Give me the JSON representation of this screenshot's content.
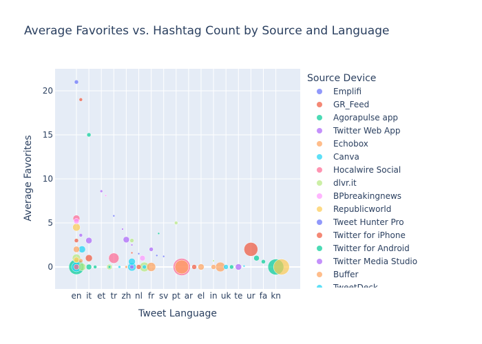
{
  "chart_data": {
    "type": "scatter",
    "title": "Average Favorites vs. Hashtag Count by Source and Language",
    "xlabel": "Tweet Language",
    "ylabel": "Average Favorites",
    "categories": [
      "en",
      "it",
      "et",
      "tr",
      "zh",
      "nl",
      "fr",
      "sv",
      "pt",
      "ar",
      "el",
      "in",
      "uk",
      "te",
      "ur",
      "fa",
      "kn"
    ],
    "y_ticks": [
      0,
      5,
      10,
      15,
      20
    ],
    "ylim": [
      -2.5,
      22.5
    ],
    "grid": true,
    "legend": {
      "title": "Source Device",
      "placement": "right",
      "items": [
        {
          "name": "Emplifi",
          "color": "#636efa"
        },
        {
          "name": "GR_Feed",
          "color": "#EF553B"
        },
        {
          "name": "Agorapulse app",
          "color": "#00cc96"
        },
        {
          "name": "Twitter Web App",
          "color": "#ab63fa"
        },
        {
          "name": "Echobox",
          "color": "#FFA15A"
        },
        {
          "name": "Canva",
          "color": "#19d3f3"
        },
        {
          "name": "Hocalwire Social",
          "color": "#FF6692"
        },
        {
          "name": "dlvr.it",
          "color": "#B6E880"
        },
        {
          "name": "BPbreakingnews",
          "color": "#FF97FF"
        },
        {
          "name": "Republicworld",
          "color": "#FECB52"
        },
        {
          "name": "Tweet Hunter Pro",
          "color": "#636efa"
        },
        {
          "name": "Twitter for iPhone",
          "color": "#EF553B"
        },
        {
          "name": "Twitter for Android",
          "color": "#00cc96"
        },
        {
          "name": "Twitter Media Studio",
          "color": "#ab63fa"
        },
        {
          "name": "Buffer",
          "color": "#FFA15A"
        },
        {
          "name": "TweetDeck",
          "color": "#19d3f3"
        }
      ]
    },
    "points": [
      {
        "x": "en",
        "dx": 0,
        "y": 21,
        "size": 6,
        "series": "Emplifi"
      },
      {
        "x": "en",
        "dx": 0.35,
        "y": 19,
        "size": 5,
        "series": "GR_Feed"
      },
      {
        "x": "it",
        "dx": 0,
        "y": 15,
        "size": 6,
        "series": "Agorapulse app"
      },
      {
        "x": "et",
        "dx": 0,
        "y": 8.6,
        "size": 4,
        "series": "Twitter Web App"
      },
      {
        "x": "et",
        "dx": 0.35,
        "y": 8.1,
        "size": 3,
        "series": "BPbreakingnews"
      },
      {
        "x": "tr",
        "dx": 0,
        "y": 5.8,
        "size": 3,
        "series": "Emplifi"
      },
      {
        "x": "pt",
        "dx": 0,
        "y": 5,
        "size": 5,
        "series": "dlvr.it"
      },
      {
        "x": "en",
        "dx": 0,
        "y": 5.5,
        "size": 10,
        "series": "Hocalwire Social"
      },
      {
        "x": "en",
        "dx": 0,
        "y": 5.2,
        "size": 8,
        "series": "BPbreakingnews"
      },
      {
        "x": "en",
        "dx": 0,
        "y": 4.5,
        "size": 11,
        "series": "Republicworld"
      },
      {
        "x": "zh",
        "dx": -0.3,
        "y": 4.3,
        "size": 3,
        "series": "Twitter Web App"
      },
      {
        "x": "sv",
        "dx": -0.4,
        "y": 3.8,
        "size": 3,
        "series": "Twitter for Android"
      },
      {
        "x": "en",
        "dx": 0.35,
        "y": 3.6,
        "size": 5,
        "series": "Twitter Web App"
      },
      {
        "x": "zh",
        "dx": 0,
        "y": 3.1,
        "size": 9,
        "series": "Twitter Web App"
      },
      {
        "x": "zh",
        "dx": 0.45,
        "y": 3,
        "size": 6,
        "series": "dlvr.it"
      },
      {
        "x": "en",
        "dx": 0,
        "y": 3,
        "size": 6,
        "series": "GR_Feed"
      },
      {
        "x": "it",
        "dx": 0,
        "y": 3,
        "size": 9,
        "series": "Twitter Web App"
      },
      {
        "x": "zh",
        "dx": 0.45,
        "y": 2.5,
        "size": 3,
        "series": "Twitter Web App"
      },
      {
        "x": "en",
        "dx": 0,
        "y": 2,
        "size": 9,
        "series": "Echobox"
      },
      {
        "x": "en",
        "dx": 0.45,
        "y": 2,
        "size": 10,
        "series": "Canva"
      },
      {
        "x": "fr",
        "dx": 0,
        "y": 2,
        "size": 6,
        "series": "Twitter Web App"
      },
      {
        "x": "zh",
        "dx": 0.45,
        "y": 1.6,
        "size": 3,
        "series": "GR_Feed"
      },
      {
        "x": "nl",
        "dx": 0,
        "y": 1.5,
        "size": 3,
        "series": "Emplifi"
      },
      {
        "x": "fr",
        "dx": 0.45,
        "y": 1.3,
        "size": 3,
        "series": "Emplifi"
      },
      {
        "x": "sv",
        "dx": 0,
        "y": 1.2,
        "size": 3,
        "series": "Emplifi"
      },
      {
        "x": "en",
        "dx": 0,
        "y": 1,
        "size": 12,
        "series": "dlvr.it"
      },
      {
        "x": "it",
        "dx": 0,
        "y": 1,
        "size": 10,
        "series": "GR_Feed"
      },
      {
        "x": "tr",
        "dx": 0,
        "y": 1,
        "size": 15,
        "series": "Hocalwire Social"
      },
      {
        "x": "nl",
        "dx": 0.3,
        "y": 1,
        "size": 8,
        "series": "BPbreakingnews"
      },
      {
        "x": "ur",
        "dx": 0.45,
        "y": 1,
        "size": 8,
        "series": "Twitter for Android"
      },
      {
        "x": "en",
        "dx": 0,
        "y": 0.8,
        "size": 8,
        "series": "Republicworld"
      },
      {
        "x": "en",
        "dx": 0.35,
        "y": 0.7,
        "size": 6,
        "series": "Buffer"
      },
      {
        "x": "zh",
        "dx": 0.45,
        "y": 0.6,
        "size": 10,
        "series": "Canva"
      },
      {
        "x": "fa",
        "dx": 0,
        "y": 0.6,
        "size": 6,
        "series": "Twitter for Android"
      },
      {
        "x": "in",
        "dx": 0,
        "y": 0.7,
        "size": 3,
        "series": "dlvr.it"
      },
      {
        "x": "ur",
        "dx": 0,
        "y": 2,
        "size": 20,
        "series": "Twitter for iPhone"
      },
      {
        "x": "pt",
        "dx": 0.45,
        "y": 0,
        "size": 25,
        "series": "Hocalwire Social"
      },
      {
        "x": "pt",
        "dx": 0.45,
        "y": 0,
        "size": 20,
        "series": "Echobox"
      },
      {
        "x": "kn",
        "dx": 0,
        "y": 0,
        "size": 23,
        "series": "Twitter for Android"
      },
      {
        "x": "kn",
        "dx": 0.45,
        "y": 0,
        "size": 23,
        "series": "Republicworld"
      },
      {
        "x": "en",
        "dx": 0,
        "y": 0,
        "size": 22,
        "series": "Twitter for Android"
      },
      {
        "x": "en",
        "dx": 0,
        "y": 0,
        "size": 14,
        "series": "Canva"
      },
      {
        "x": "en",
        "dx": 0,
        "y": 0,
        "size": 8,
        "series": "Hocalwire Social"
      },
      {
        "x": "en",
        "dx": 0.45,
        "y": 0,
        "size": 11,
        "series": "dlvr.it"
      },
      {
        "x": "it",
        "dx": 0,
        "y": 0,
        "size": 8,
        "series": "Agorapulse app"
      },
      {
        "x": "it",
        "dx": 0.5,
        "y": 0,
        "size": 5,
        "series": "Twitter for Android"
      },
      {
        "x": "tr",
        "dx": -0.35,
        "y": 0,
        "size": 8,
        "series": "dlvr.it"
      },
      {
        "x": "tr",
        "dx": -0.35,
        "y": 0,
        "size": 4,
        "series": "Agorapulse app"
      },
      {
        "x": "tr",
        "dx": 0.45,
        "y": 0,
        "size": 4,
        "series": "Canva"
      },
      {
        "x": "zh",
        "dx": 0,
        "y": 0,
        "size": 4,
        "series": "Echobox"
      },
      {
        "x": "zh",
        "dx": 0.45,
        "y": 0,
        "size": 12,
        "series": "Canva"
      },
      {
        "x": "zh",
        "dx": 0.45,
        "y": 0,
        "size": 6,
        "series": "Twitter Web App"
      },
      {
        "x": "nl",
        "dx": 0,
        "y": 0,
        "size": 7,
        "series": "GR_Feed"
      },
      {
        "x": "nl",
        "dx": 0.45,
        "y": 0,
        "size": 14,
        "series": "dlvr.it"
      },
      {
        "x": "nl",
        "dx": 0.45,
        "y": 0,
        "size": 6,
        "series": "Canva"
      },
      {
        "x": "fr",
        "dx": 0,
        "y": 0,
        "size": 13,
        "series": "Echobox"
      },
      {
        "x": "ar",
        "dx": 0.45,
        "y": 0,
        "size": 7,
        "series": "GR_Feed"
      },
      {
        "x": "el",
        "dx": 0,
        "y": 0,
        "size": 9,
        "series": "Buffer"
      },
      {
        "x": "in",
        "dx": 0,
        "y": 0,
        "size": 7,
        "series": "Echobox"
      },
      {
        "x": "uk",
        "dx": -0.45,
        "y": 0,
        "size": 14,
        "series": "Echobox"
      },
      {
        "x": "uk",
        "dx": 0,
        "y": 0,
        "size": 7,
        "series": "Canva"
      },
      {
        "x": "uk",
        "dx": 0.45,
        "y": 0,
        "size": 6,
        "series": "Twitter for Android"
      },
      {
        "x": "te",
        "dx": 0,
        "y": 0,
        "size": 9,
        "series": "Twitter Web App"
      },
      {
        "x": "te",
        "dx": 0.45,
        "y": 0.1,
        "size": 3,
        "series": "Canva"
      }
    ]
  }
}
